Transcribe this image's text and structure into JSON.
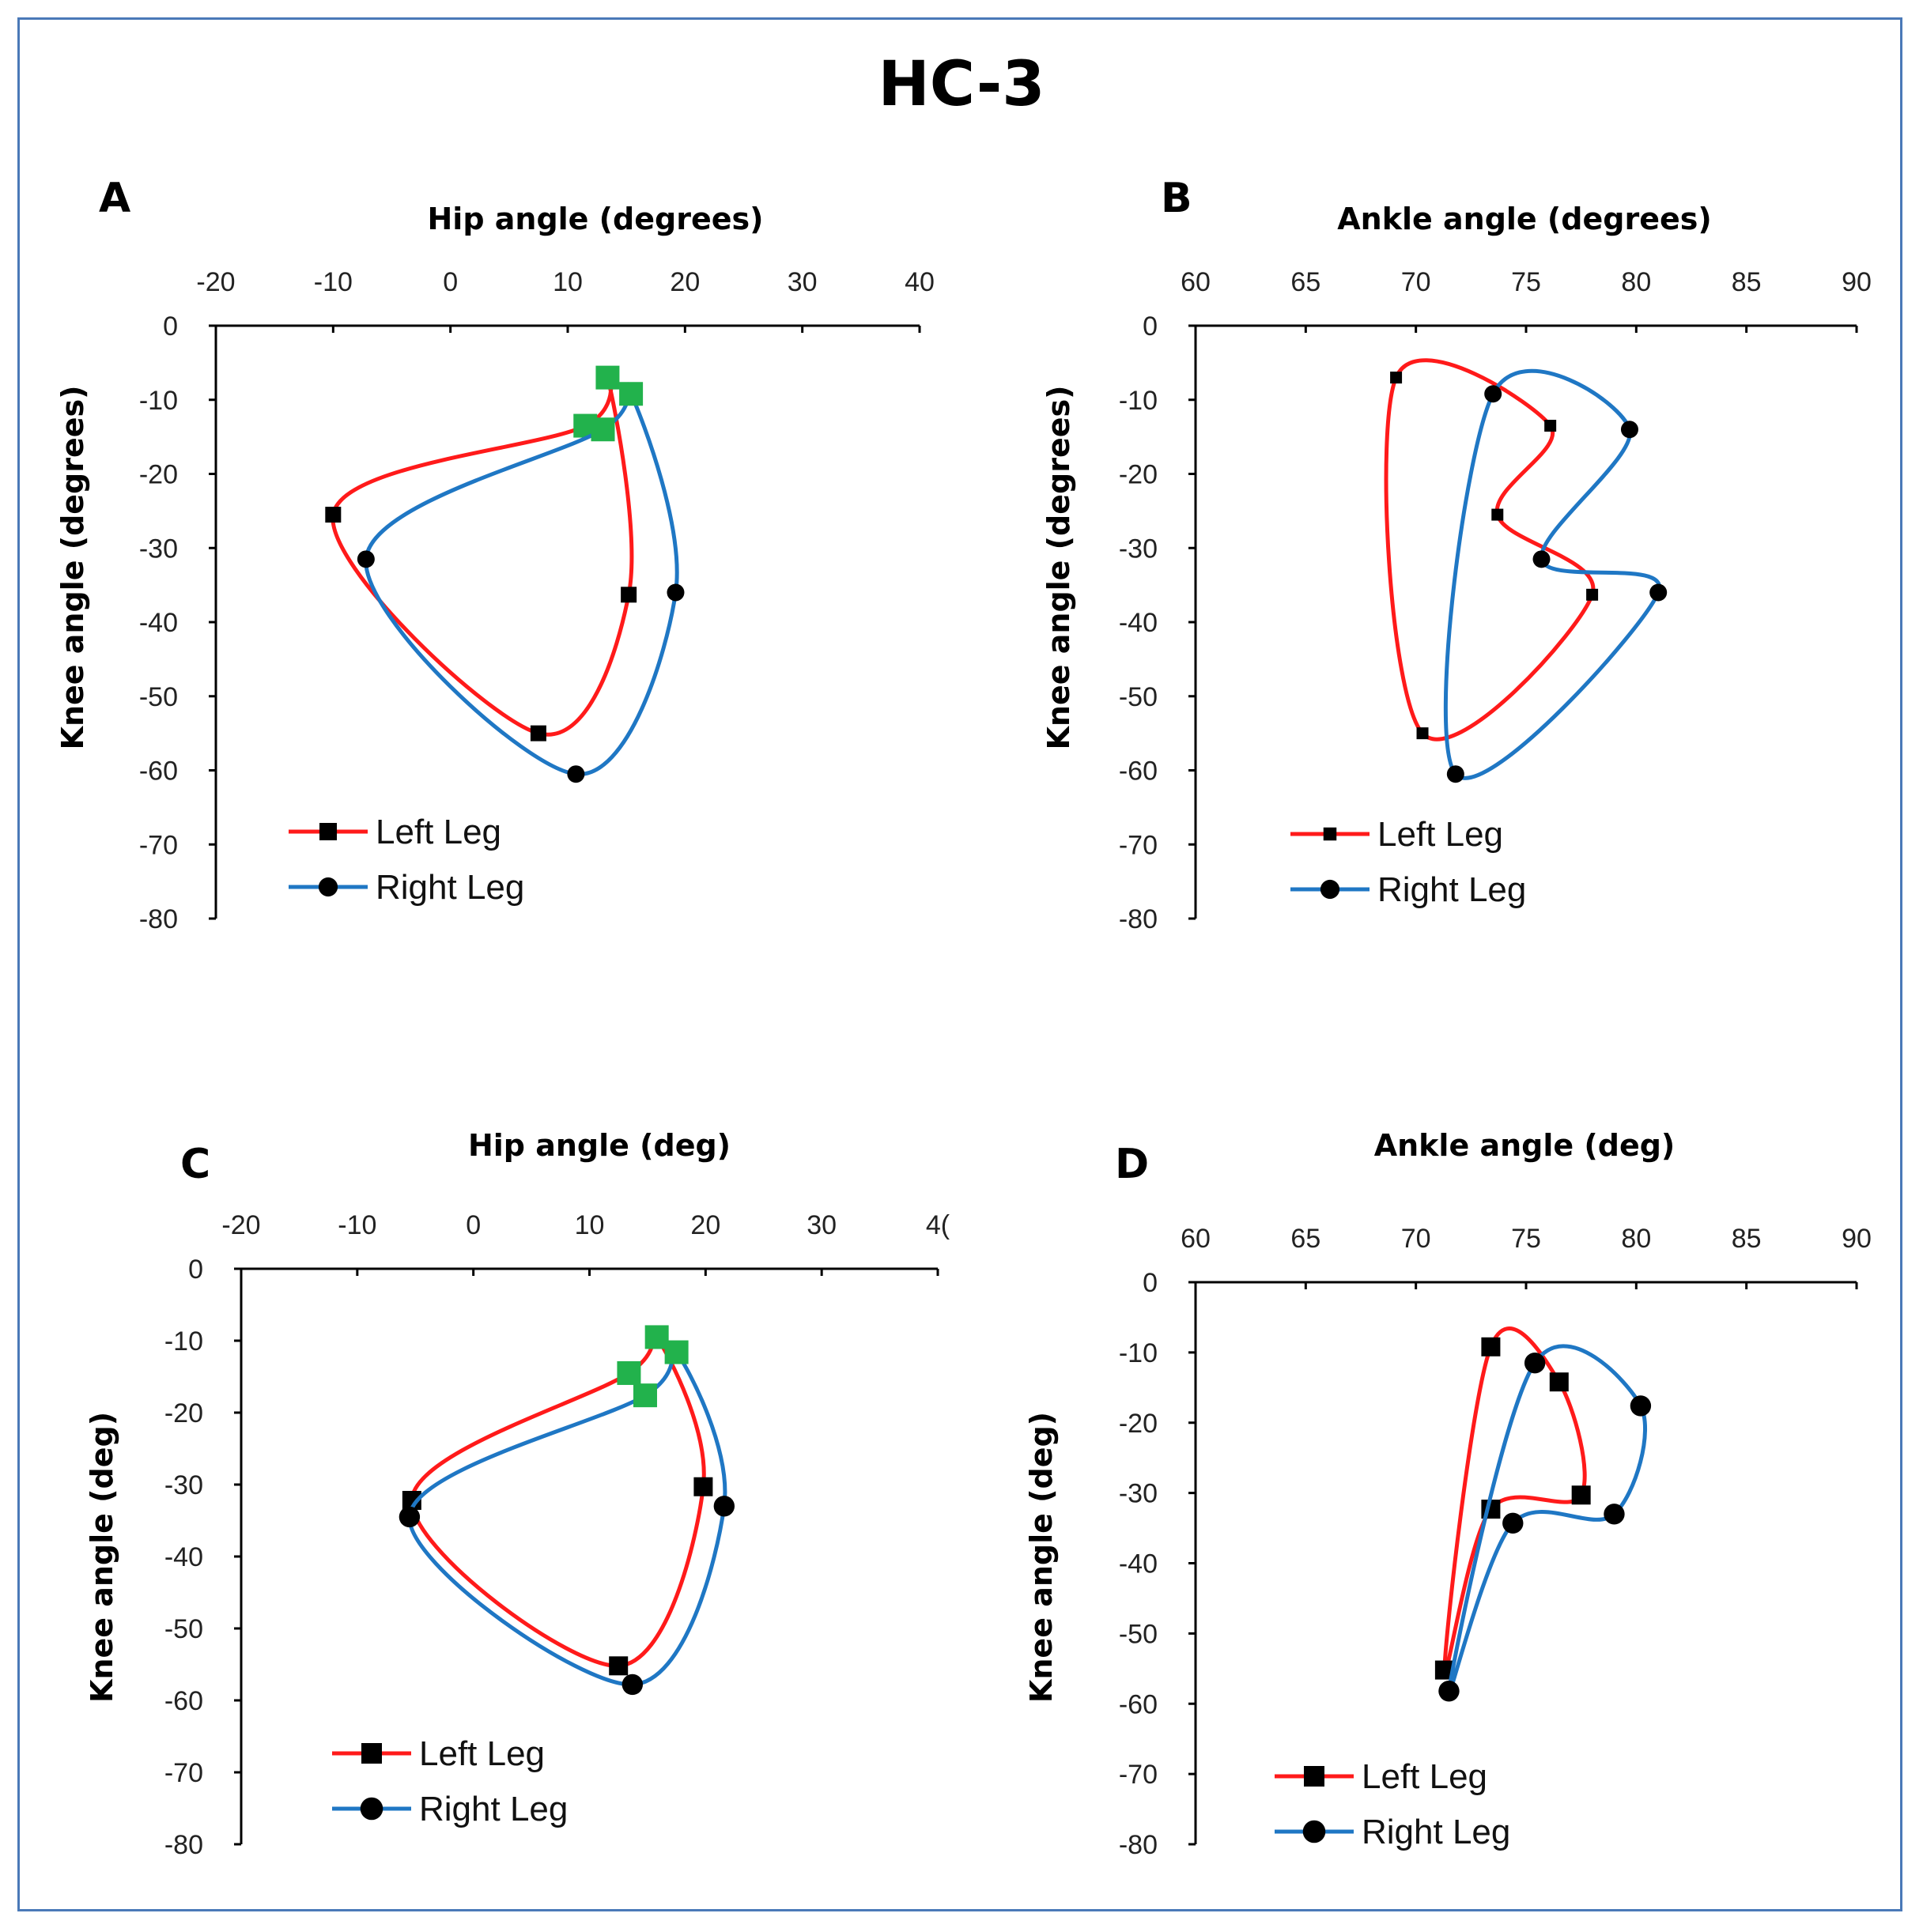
{
  "title": "HC-3",
  "colors": {
    "left": "#ff1a1a",
    "right": "#1f77c4",
    "highlight": "#22b24c",
    "frame": "#4a79b8"
  },
  "chart_data": [
    {
      "id": "A",
      "type": "line",
      "panel_label": "A",
      "xlabel": "Hip angle (degrees)",
      "ylabel": "Knee angle (degrees)",
      "xlim": [
        -20,
        40
      ],
      "ylim": [
        -80,
        0
      ],
      "xticks": [
        "-20",
        "-10",
        "0",
        "10",
        "20",
        "30",
        "40"
      ],
      "yticks": [
        "0",
        "-10",
        "-20",
        "-30",
        "-40",
        "-50",
        "-60",
        "-70",
        "-80"
      ],
      "legend": [
        "Left Leg",
        "Right Leg"
      ],
      "series": [
        {
          "name": "Left Leg",
          "marker": "square",
          "points": [
            [
              11.5,
              -13.5
            ],
            [
              -10,
              -25.5
            ],
            [
              7.5,
              -55
            ],
            [
              15.2,
              -36.3
            ],
            [
              13.4,
              -7
            ]
          ],
          "highlight": [
            [
              11.5,
              -13.5
            ],
            [
              13.4,
              -7
            ]
          ]
        },
        {
          "name": "Right Leg",
          "marker": "circle",
          "points": [
            [
              13,
              -14
            ],
            [
              -7.2,
              -31.5
            ],
            [
              10.7,
              -60.5
            ],
            [
              19.2,
              -36
            ],
            [
              15.4,
              -9.2
            ]
          ],
          "highlight": [
            [
              13,
              -14
            ],
            [
              15.4,
              -9.2
            ]
          ]
        }
      ]
    },
    {
      "id": "B",
      "type": "line",
      "panel_label": "B",
      "xlabel": "Ankle angle (degrees)",
      "ylabel": "Knee angle (degrees)",
      "xlim": [
        60,
        90
      ],
      "ylim": [
        -80,
        0
      ],
      "xticks": [
        "60",
        "65",
        "70",
        "75",
        "80",
        "85",
        "90"
      ],
      "yticks": [
        "0",
        "-10",
        "-20",
        "-30",
        "-40",
        "-50",
        "-60",
        "-70",
        "-80"
      ],
      "legend": [
        "Left Leg",
        "Right Leg"
      ],
      "series": [
        {
          "name": "Left Leg",
          "marker": "square-small",
          "points": [
            [
              69.1,
              -7
            ],
            [
              76.1,
              -13.5
            ],
            [
              73.7,
              -25.5
            ],
            [
              78,
              -36.3
            ],
            [
              70.3,
              -55
            ]
          ],
          "highlight": []
        },
        {
          "name": "Right Leg",
          "marker": "circle",
          "points": [
            [
              73.5,
              -9.2
            ],
            [
              79.7,
              -14
            ],
            [
              75.7,
              -31.5
            ],
            [
              81,
              -36
            ],
            [
              71.8,
              -60.5
            ]
          ],
          "highlight": []
        }
      ]
    },
    {
      "id": "C",
      "type": "line",
      "panel_label": "C",
      "xlabel": "Hip angle (deg)",
      "ylabel": "Knee angle (deg)",
      "xlim": [
        -20,
        40
      ],
      "ylim": [
        -80,
        0
      ],
      "xticks": [
        "-20",
        "-10",
        "0",
        "10",
        "20",
        "30",
        "4("
      ],
      "yticks": [
        "0",
        "-10",
        "-20",
        "-30",
        "-40",
        "-50",
        "-60",
        "-70",
        "-80"
      ],
      "legend": [
        "Left Leg",
        "Right Leg"
      ],
      "series": [
        {
          "name": "Left Leg",
          "marker": "square",
          "points": [
            [
              13.4,
              -14.5
            ],
            [
              -5.3,
              -32.2
            ],
            [
              12.5,
              -55.2
            ],
            [
              19.8,
              -30.3
            ],
            [
              15.8,
              -9.5
            ]
          ],
          "highlight": [
            [
              13.4,
              -14.5
            ],
            [
              15.8,
              -9.5
            ]
          ]
        },
        {
          "name": "Right Leg",
          "marker": "circle",
          "points": [
            [
              14.8,
              -17.6
            ],
            [
              -5.5,
              -34.5
            ],
            [
              13.7,
              -57.8
            ],
            [
              21.6,
              -33
            ],
            [
              17.5,
              -11.6
            ]
          ],
          "highlight": [
            [
              14.8,
              -17.6
            ],
            [
              17.5,
              -11.6
            ]
          ]
        }
      ]
    },
    {
      "id": "D",
      "type": "line",
      "panel_label": "D",
      "xlabel": "Ankle angle (deg)",
      "ylabel": "Knee angle (deg)",
      "xlim": [
        60,
        90
      ],
      "ylim": [
        -80,
        0
      ],
      "xticks": [
        "60",
        "65",
        "70",
        "75",
        "80",
        "85",
        "90"
      ],
      "yticks": [
        "0",
        "-10",
        "-20",
        "-30",
        "-40",
        "-50",
        "-60",
        "-70",
        "-80"
      ],
      "legend": [
        "Left Leg",
        "Right Leg"
      ],
      "series": [
        {
          "name": "Left Leg",
          "marker": "square",
          "points": [
            [
              73.4,
              -9.2
            ],
            [
              76.5,
              -14.2
            ],
            [
              77.5,
              -30.3
            ],
            [
              73.4,
              -32.3
            ],
            [
              71.3,
              -55.2
            ]
          ],
          "highlight": []
        },
        {
          "name": "Right Leg",
          "marker": "circle",
          "points": [
            [
              75.4,
              -11.5
            ],
            [
              80.2,
              -17.6
            ],
            [
              79,
              -33
            ],
            [
              74.4,
              -34.3
            ],
            [
              71.5,
              -58.2
            ]
          ],
          "highlight": []
        }
      ]
    }
  ]
}
